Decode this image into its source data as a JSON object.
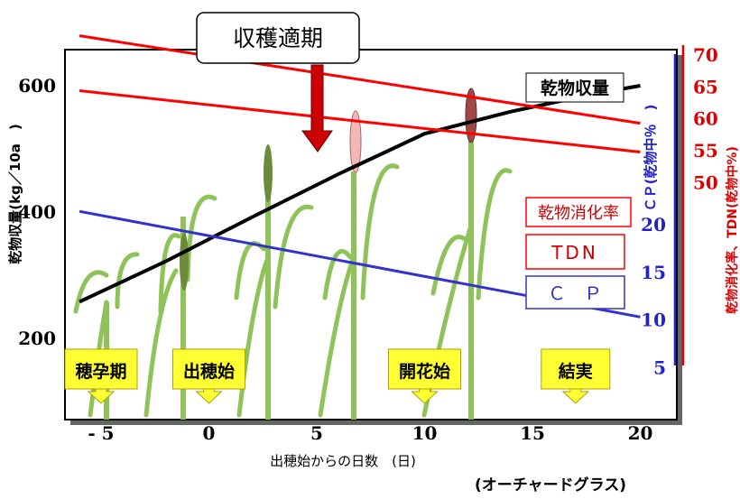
{
  "chart_data": {
    "type": "line",
    "title": "",
    "harvest_label": "収穫適期",
    "x": [
      -6,
      20
    ],
    "xlabel": "出穂始からの日数　(日)",
    "xticks": [
      "- 5",
      "0",
      "5",
      "10",
      "15",
      "20"
    ],
    "xtick_values": [
      -5,
      0,
      5,
      10,
      15,
      20
    ],
    "xlim": [
      -7.3,
      22.8
    ],
    "note": "(オーチャードグラス)",
    "y_left": {
      "label": "乾物収量(kg／10a　)",
      "ticks": [
        "200",
        "400",
        "600"
      ],
      "tick_values": [
        200,
        400,
        600
      ],
      "ylim": [
        0,
        660
      ]
    },
    "y_cp": {
      "label": "ＣＰ(乾物中％　)",
      "ticks": [
        "5",
        "10",
        "15",
        "20"
      ],
      "tick_values": [
        5,
        10,
        15,
        20
      ],
      "ylim": [
        0,
        42
      ],
      "color": "#2222cc"
    },
    "y_tdn": {
      "label": "乾物消化率、TDN(乾物中%)",
      "ticks": [
        "50",
        "55",
        "60",
        "65",
        "70"
      ],
      "tick_values": [
        50,
        55,
        60,
        65,
        70
      ],
      "ylim": [
        38,
        74
      ],
      "color": "#dd0000"
    },
    "series": [
      {
        "name": "乾物収量",
        "axis": "left",
        "color": "#000000",
        "x": [
          -6,
          -2,
          2,
          6,
          10,
          14,
          18,
          20
        ],
        "values": [
          258,
          322,
          392,
          460,
          524,
          559,
          588,
          600
        ]
      },
      {
        "name": "乾物消化率",
        "axis": "tdn",
        "color": "#ff0000",
        "x": [
          -6,
          20
        ],
        "values": [
          73.0,
          59.3
        ]
      },
      {
        "name": "TDN",
        "axis": "tdn",
        "color": "#ff0000",
        "x": [
          -6,
          20
        ],
        "values": [
          64.4,
          54.8
        ]
      },
      {
        "name": "Ｃ　Ｐ",
        "axis": "cp",
        "color": "#3333cc",
        "x": [
          -6,
          20
        ],
        "values": [
          21.4,
          10.3
        ]
      }
    ],
    "stages": [
      {
        "label": "穂孕期",
        "x": -5
      },
      {
        "label": "出穂始",
        "x": 0
      },
      {
        "label": "開花始",
        "x": 10
      },
      {
        "label": "結実",
        "x": 17
      }
    ],
    "harvest_x": 5
  }
}
